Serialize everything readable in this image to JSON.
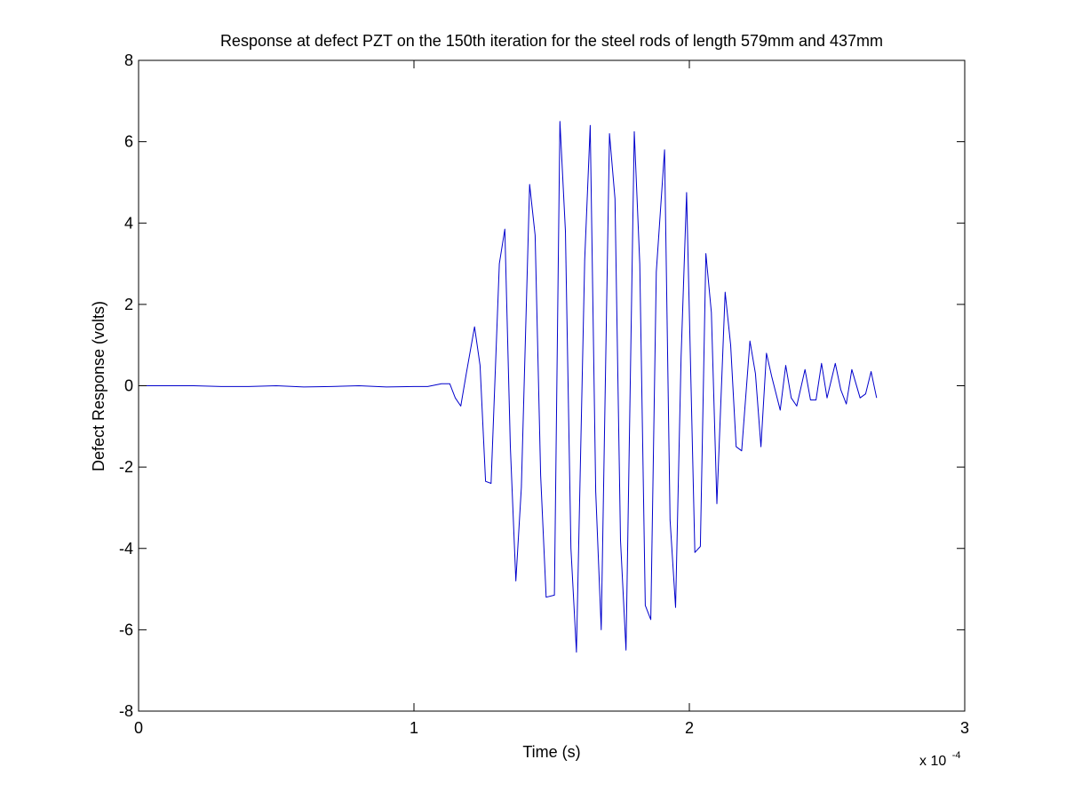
{
  "chart_data": {
    "type": "line",
    "title": "Response at defect PZT on the 150th iteration for the steel rods of length 579mm and 437mm",
    "xlabel": "Time (s)",
    "ylabel": "Defect Response (volts)",
    "x_multiplier_base": "x 10",
    "x_multiplier_exp": "-4",
    "xlim": [
      0,
      3
    ],
    "ylim": [
      -8,
      8
    ],
    "xticks": [
      0,
      1,
      2,
      3
    ],
    "xtick_labels": [
      "0",
      "1",
      "2",
      "3"
    ],
    "yticks": [
      -8,
      -6,
      -4,
      -2,
      0,
      2,
      4,
      6,
      8
    ],
    "ytick_labels": [
      "-8",
      "-6",
      "-4",
      "-2",
      "0",
      "2",
      "4",
      "6",
      "8"
    ],
    "grid": false,
    "line_color": "#0000cc",
    "series": [
      {
        "x": [
          0,
          0.1,
          0.2,
          0.3,
          0.4,
          0.5,
          0.6,
          0.7,
          0.8,
          0.9,
          1.0,
          1.05,
          1.1,
          1.13,
          1.15,
          1.17,
          1.19,
          1.22,
          1.24,
          1.26,
          1.28,
          1.31,
          1.33,
          1.35,
          1.37,
          1.39,
          1.42,
          1.44,
          1.46,
          1.48,
          1.51,
          1.53,
          1.55,
          1.57,
          1.59,
          1.62,
          1.64,
          1.66,
          1.68,
          1.71,
          1.73,
          1.75,
          1.77,
          1.8,
          1.82,
          1.84,
          1.86,
          1.88,
          1.91,
          1.93,
          1.95,
          1.97,
          1.99,
          2.02,
          2.04,
          2.06,
          2.08,
          2.1,
          2.13,
          2.15,
          2.17,
          2.19,
          2.22,
          2.24,
          2.26,
          2.28,
          2.3,
          2.33,
          2.35,
          2.37,
          2.39,
          2.42,
          2.44,
          2.46,
          2.48,
          2.5,
          2.53,
          2.55,
          2.57,
          2.59,
          2.62,
          2.64,
          2.66,
          2.68
        ],
        "y": [
          0,
          0,
          0,
          -0.02,
          -0.02,
          0,
          -0.03,
          -0.02,
          0,
          -0.03,
          -0.02,
          -0.02,
          0.05,
          0.05,
          -0.3,
          -0.5,
          0.3,
          1.45,
          0.5,
          -2.35,
          -2.4,
          3.0,
          3.85,
          -1.5,
          -4.8,
          -2.5,
          4.95,
          3.7,
          -2.2,
          -5.2,
          -5.15,
          6.5,
          3.8,
          -4.0,
          -6.55,
          3.1,
          6.4,
          -2.6,
          -6.0,
          6.2,
          4.6,
          -3.8,
          -6.5,
          6.25,
          3.0,
          -5.4,
          -5.75,
          2.8,
          5.8,
          -3.3,
          -5.45,
          0.7,
          4.75,
          -4.1,
          -3.95,
          3.25,
          1.8,
          -2.9,
          2.3,
          1.0,
          -1.5,
          -1.6,
          1.1,
          0.3,
          -1.5,
          0.8,
          0.2,
          -0.6,
          0.5,
          -0.3,
          -0.5,
          0.4,
          -0.35,
          -0.35,
          0.55,
          -0.3,
          0.55,
          -0.1,
          -0.45,
          0.4,
          -0.3,
          -0.2,
          0.35,
          -0.3
        ]
      }
    ]
  }
}
